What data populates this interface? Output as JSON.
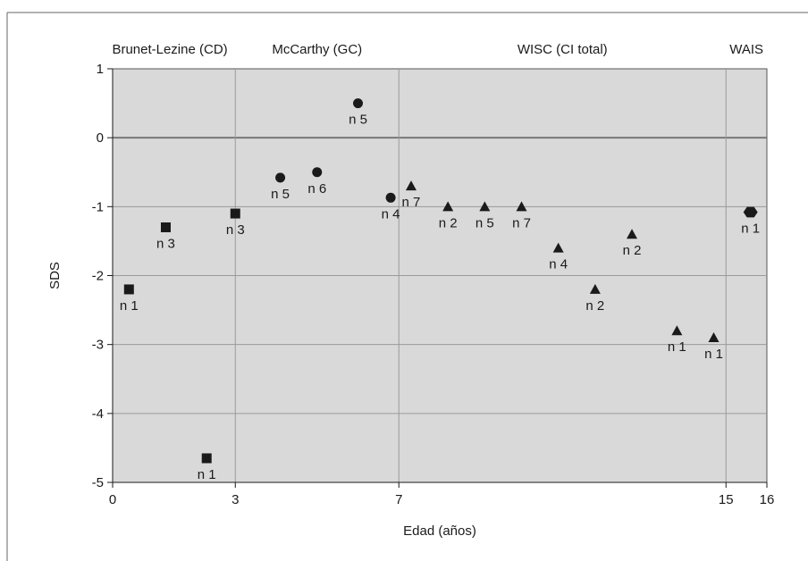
{
  "chart_data": {
    "type": "scatter",
    "title": "",
    "xlabel": "Edad (años)",
    "ylabel": "SDS",
    "xlim": [
      0,
      16
    ],
    "ylim": [
      -5,
      1
    ],
    "x_ticks": [
      0,
      3,
      7,
      15,
      16
    ],
    "y_ticks": [
      1,
      0,
      -1,
      -2,
      -3,
      -4,
      -5
    ],
    "x_tick_labels": [
      "0",
      "3",
      "7",
      "15",
      "16"
    ],
    "y_tick_labels": [
      "1",
      "0",
      "-1",
      "-2",
      "-3",
      "-4",
      "-5"
    ],
    "grid": true,
    "plot_background": "#d9d9d9",
    "marker_color": "#1a1a1a",
    "group_labels": [
      {
        "text": "Brunet-Lezine (CD)",
        "x": 1.4
      },
      {
        "text": "McCarthy (GC)",
        "x": 5.0
      },
      {
        "text": "WISC (CI total)",
        "x": 11.0
      },
      {
        "text": "WAIS",
        "x": 15.5
      }
    ],
    "series": [
      {
        "name": "Brunet-Lezine (CD)",
        "marker": "square",
        "points": [
          {
            "x": 0.4,
            "y": -2.2,
            "label": "n 1"
          },
          {
            "x": 1.3,
            "y": -1.3,
            "label": "n 3"
          },
          {
            "x": 2.3,
            "y": -4.65,
            "label": "n 1"
          },
          {
            "x": 3.0,
            "y": -1.1,
            "label": "n 3"
          }
        ]
      },
      {
        "name": "McCarthy (GC)",
        "marker": "circle",
        "points": [
          {
            "x": 4.1,
            "y": -0.58,
            "label": "n 5"
          },
          {
            "x": 5.0,
            "y": -0.5,
            "label": "n 6"
          },
          {
            "x": 6.0,
            "y": 0.5,
            "label": "n 5"
          },
          {
            "x": 6.8,
            "y": -0.87,
            "label": "n 4"
          }
        ]
      },
      {
        "name": "WISC (CI total)",
        "marker": "triangle",
        "points": [
          {
            "x": 7.3,
            "y": -0.7,
            "label": "n 7"
          },
          {
            "x": 8.2,
            "y": -1.0,
            "label": "n 2"
          },
          {
            "x": 9.1,
            "y": -1.0,
            "label": "n 5"
          },
          {
            "x": 10.0,
            "y": -1.0,
            "label": "n 7"
          },
          {
            "x": 10.9,
            "y": -1.6,
            "label": "n 4"
          },
          {
            "x": 11.8,
            "y": -2.2,
            "label": "n 2"
          },
          {
            "x": 12.7,
            "y": -1.4,
            "label": "n 2"
          },
          {
            "x": 13.8,
            "y": -2.8,
            "label": "n 1"
          },
          {
            "x": 14.7,
            "y": -2.9,
            "label": "n 1"
          }
        ]
      },
      {
        "name": "WAIS",
        "marker": "hexagon",
        "points": [
          {
            "x": 15.6,
            "y": -1.08,
            "label": "n 1"
          }
        ]
      }
    ]
  }
}
